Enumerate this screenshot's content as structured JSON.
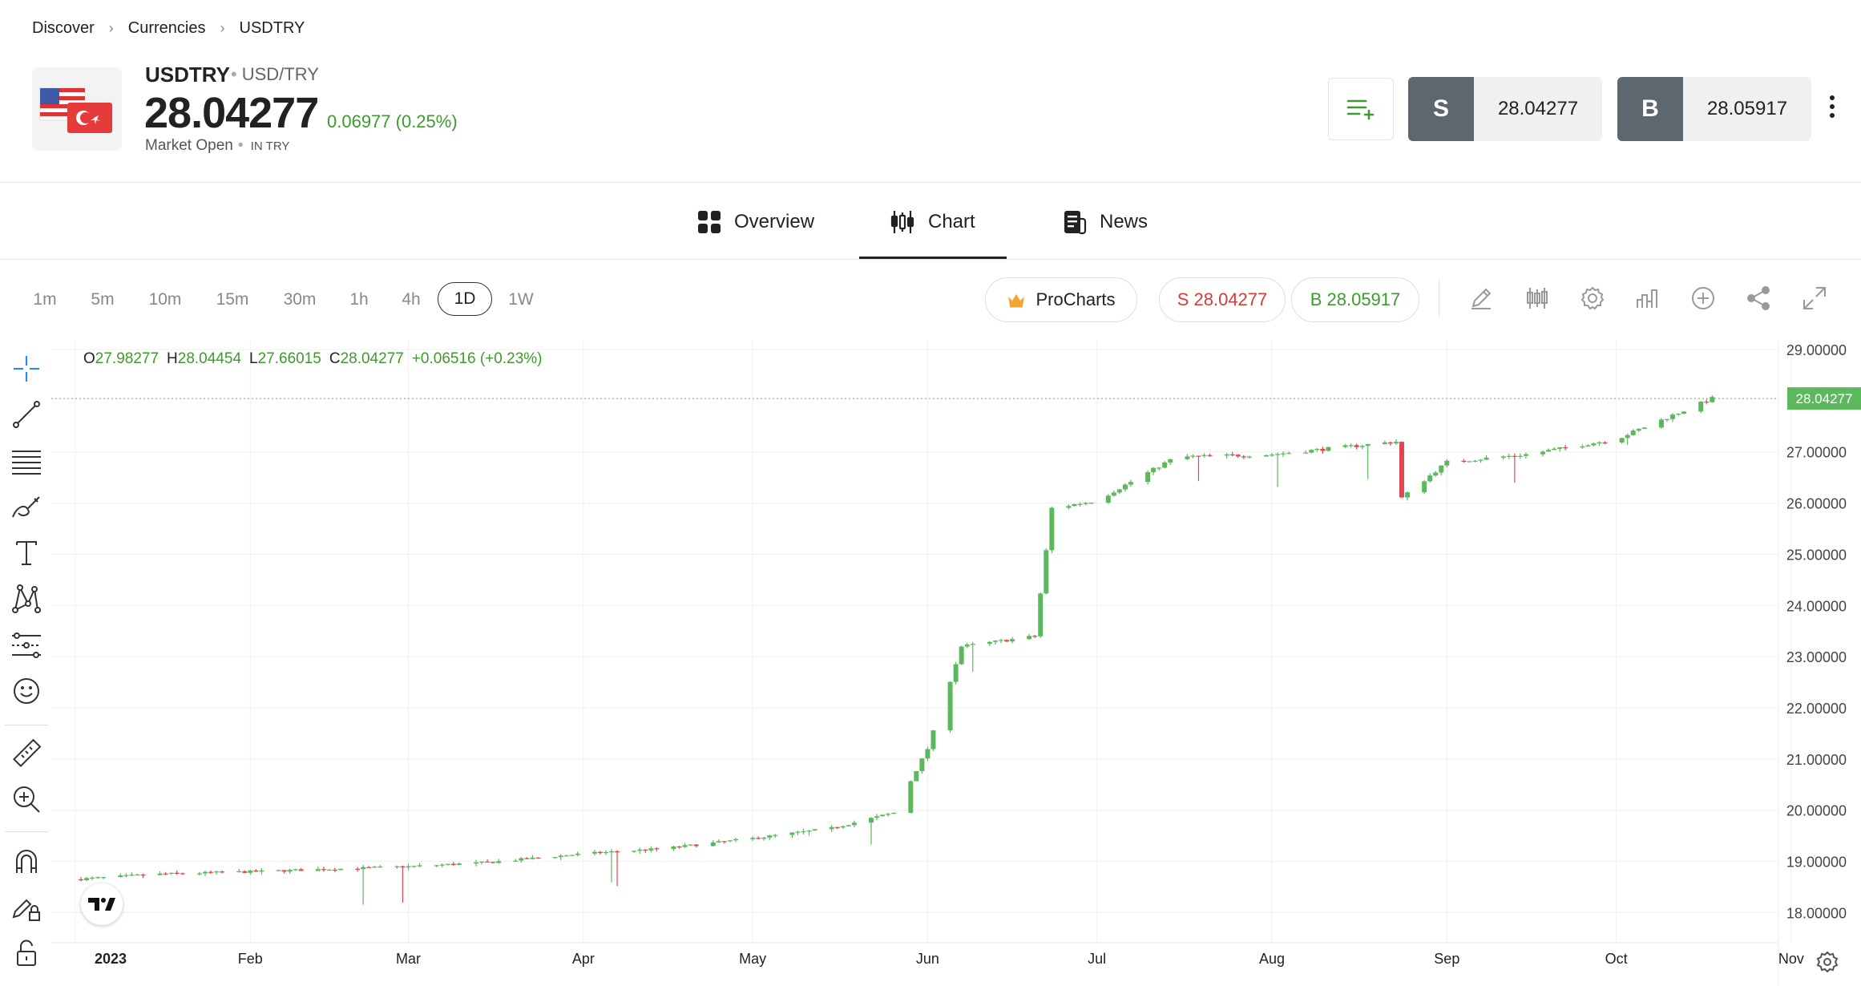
{
  "breadcrumb": [
    "Discover",
    "Currencies",
    "USDTRY"
  ],
  "instrument": {
    "symbol": "USDTRY",
    "pair": "USD/TRY",
    "price": "28.04277",
    "change": "0.06977 (0.25%)",
    "market_status": "Market Open",
    "currency_note": "IN TRY"
  },
  "trade": {
    "sell_label": "S",
    "sell_price": "28.04277",
    "buy_label": "B",
    "buy_price": "28.05917"
  },
  "tabs": [
    "Overview",
    "Chart",
    "News"
  ],
  "active_tab": "Chart",
  "timeframes": [
    "1m",
    "5m",
    "10m",
    "15m",
    "30m",
    "1h",
    "4h",
    "1D",
    "1W"
  ],
  "active_timeframe": "1D",
  "procharts_label": "ProCharts",
  "quote_pills": {
    "sell": "S 28.04277",
    "buy": "B 28.05917"
  },
  "colors": {
    "up": "#5cb85c",
    "down": "#e0474c",
    "positive_text": "#3f9a2e",
    "sell_text": "#d83b3b",
    "trade_label_bg": "#5d6770"
  },
  "ohlc": {
    "o_label": "O",
    "o": "27.98277",
    "h_label": "H",
    "h": "28.04454",
    "l_label": "L",
    "l": "27.66015",
    "c_label": "C",
    "c": "28.04277",
    "change": "+0.06516 (+0.23%)"
  },
  "tools_left": [
    "crosshair-icon",
    "trend-line-icon",
    "fib-lines-icon",
    "brush-icon",
    "text-icon",
    "pattern-icon",
    "forecast-icon",
    "emoji-icon",
    "ruler-icon",
    "zoom-in-icon",
    "magnet-icon",
    "lock-drawing-icon",
    "unlock-icon"
  ],
  "tools_right": [
    "pencil-icon",
    "candles-icon",
    "settings-icon",
    "indicators-icon",
    "add-icon",
    "share-icon",
    "fullscreen-icon"
  ],
  "chart_data": {
    "type": "candlestick",
    "instrument": "USDTRY",
    "interval": "1D",
    "current_price": 28.04277,
    "y_range": [
      17.6,
      29.0
    ],
    "y_ticks": [
      "29.00000",
      "27.00000",
      "26.00000",
      "25.00000",
      "24.00000",
      "23.00000",
      "22.00000",
      "21.00000",
      "20.00000",
      "19.00000",
      "18.00000"
    ],
    "y_tick_values": [
      29,
      27,
      26,
      25,
      24,
      23,
      22,
      21,
      20,
      19,
      18
    ],
    "x_range": [
      "2023-01-01",
      "2023-11-03"
    ],
    "x_ticks": [
      "2023",
      "Feb",
      "Mar",
      "Apr",
      "May",
      "Jun",
      "Jul",
      "Aug",
      "Sep",
      "Oct",
      "Nov"
    ],
    "x_tick_dates": [
      "2023-01-01",
      "2023-02-01",
      "2023-03-01",
      "2023-04-01",
      "2023-05-01",
      "2023-06-01",
      "2023-07-01",
      "2023-08-01",
      "2023-09-01",
      "2023-10-01",
      "2023-11-01"
    ],
    "price_label": "28.04277",
    "grid": true,
    "close_anchors": [
      [
        "2023-01-01",
        18.65
      ],
      [
        "2023-01-15",
        18.75
      ],
      [
        "2023-02-01",
        18.8
      ],
      [
        "2023-02-15",
        18.85
      ],
      [
        "2023-03-01",
        18.9
      ],
      [
        "2023-03-15",
        18.98
      ],
      [
        "2023-04-01",
        19.15
      ],
      [
        "2023-04-15",
        19.25
      ],
      [
        "2023-05-01",
        19.45
      ],
      [
        "2023-05-15",
        19.65
      ],
      [
        "2023-05-26",
        19.95
      ],
      [
        "2023-06-01",
        21.2
      ],
      [
        "2023-06-07",
        23.2
      ],
      [
        "2023-06-20",
        23.4
      ],
      [
        "2023-06-23",
        25.9
      ],
      [
        "2023-07-01",
        26.05
      ],
      [
        "2023-07-15",
        26.9
      ],
      [
        "2023-08-01",
        26.95
      ],
      [
        "2023-08-23",
        27.2
      ],
      [
        "2023-08-24",
        26.1
      ],
      [
        "2023-09-01",
        26.8
      ],
      [
        "2023-09-15",
        26.95
      ],
      [
        "2023-10-01",
        27.25
      ],
      [
        "2023-10-18",
        28.04277
      ]
    ]
  }
}
